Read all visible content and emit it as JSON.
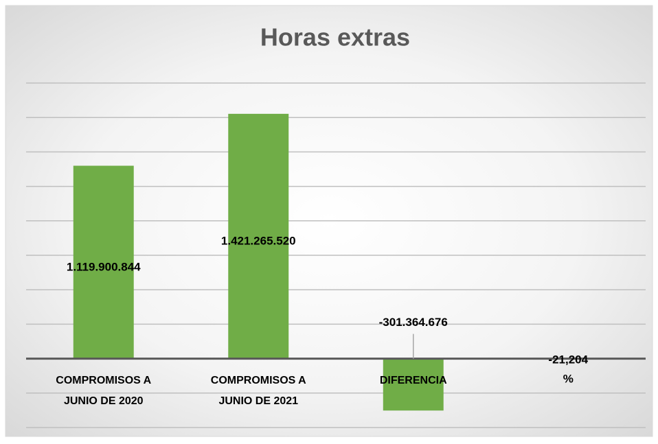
{
  "chart_data": {
    "type": "bar",
    "title": "Horas extras",
    "categories": [
      "COMPROMISOS A\nJUNIO  DE  2020",
      "COMPROMISOS A\nJUNIO DE 2021",
      "DIFERENCIA",
      null
    ],
    "values": [
      1119900844,
      1421265520,
      -301364676,
      -21.204
    ],
    "value_labels": [
      "1.119.900.844",
      "1.421.265.520",
      "-301.364.676",
      "-21,204\n%"
    ],
    "color": "#70ad47",
    "ylim": [
      -400000000,
      1600000000
    ],
    "yticks": [
      -400000000,
      -200000000,
      0,
      200000000,
      400000000,
      600000000,
      800000000,
      1000000000,
      1200000000,
      1400000000,
      1600000000
    ],
    "grid": true
  }
}
